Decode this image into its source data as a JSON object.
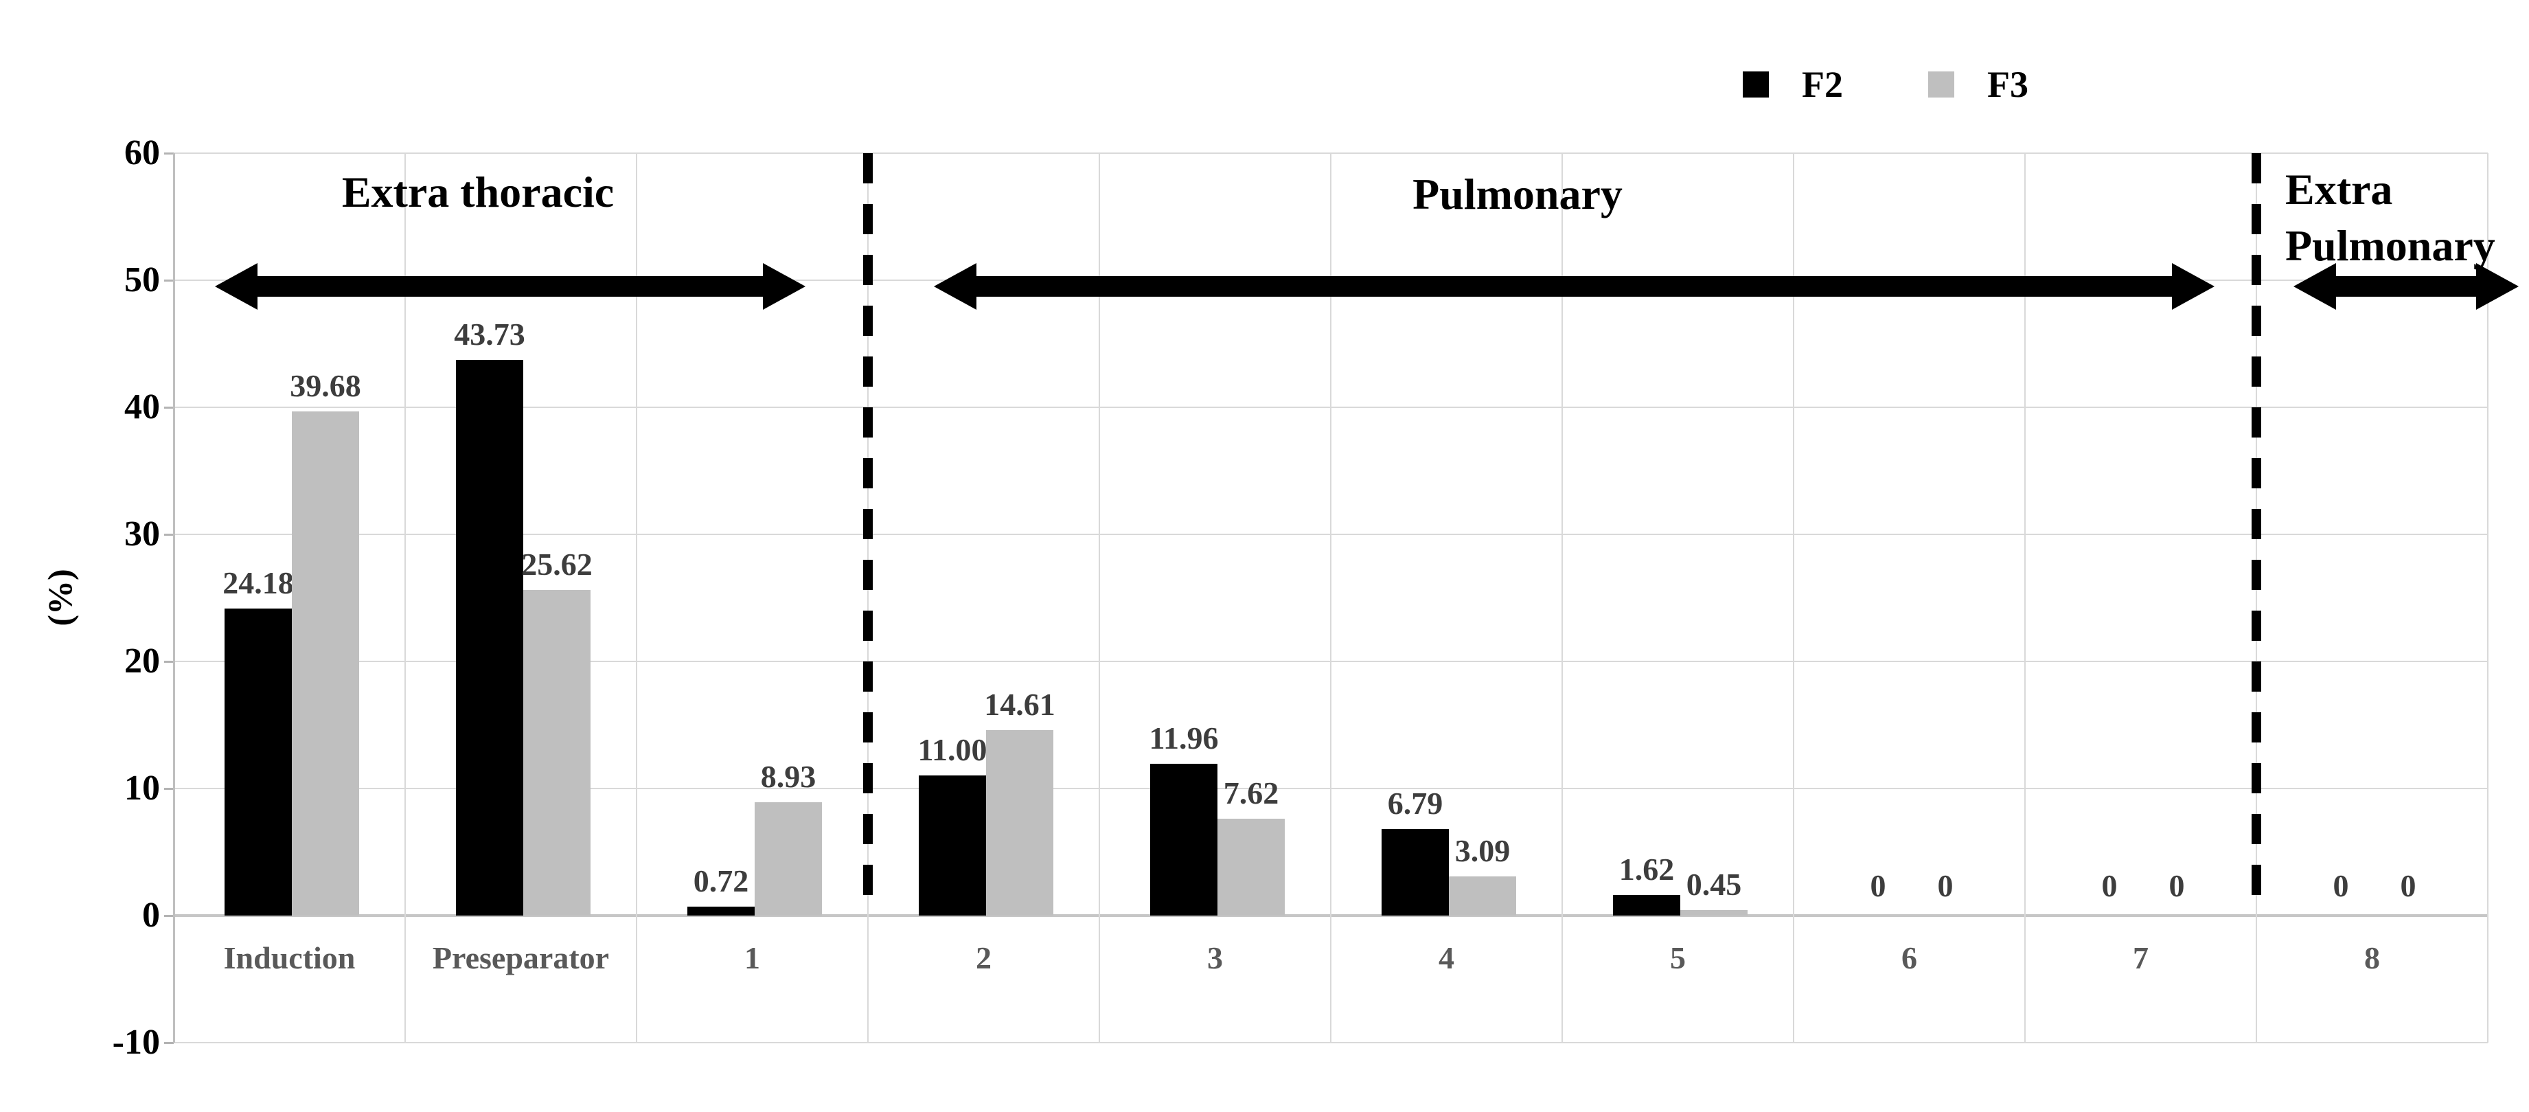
{
  "legend": {
    "items": [
      {
        "label": "F2",
        "color": "#000000"
      },
      {
        "label": "F3",
        "color": "#bfbfbf"
      }
    ]
  },
  "chart_data": {
    "type": "bar",
    "title": "",
    "xlabel": "",
    "ylabel": "(%)",
    "ylim": [
      -10,
      60
    ],
    "ytick_values": [
      60,
      50,
      40,
      30,
      20,
      10,
      0,
      -10
    ],
    "ytick_labels": [
      "60",
      "50",
      "40",
      "30",
      "20",
      "10",
      "0",
      "-10"
    ],
    "grid": true,
    "legend_position": "top-right",
    "categories": [
      "Induction",
      "Preseparator",
      "1",
      "2",
      "3",
      "4",
      "5",
      "6",
      "7",
      "8"
    ],
    "series": [
      {
        "name": "F2",
        "color": "#000000",
        "values": [
          24.18,
          43.73,
          0.72,
          11.0,
          11.96,
          6.79,
          1.62,
          0,
          0,
          0
        ],
        "labels": [
          "24.18",
          "43.73",
          "0.72",
          "11.00",
          "11.96",
          "6.79",
          "1.62",
          "0",
          "0",
          "0"
        ]
      },
      {
        "name": "F3",
        "color": "#bfbfbf",
        "values": [
          39.68,
          25.62,
          8.93,
          14.61,
          7.62,
          3.09,
          0.45,
          0,
          0,
          0
        ],
        "labels": [
          "39.68",
          "25.62",
          "8.93",
          "14.61",
          "7.62",
          "3.09",
          "0.45",
          "0",
          "0",
          "0"
        ]
      }
    ],
    "dashed_separators_at_boundary": [
      3,
      9
    ],
    "region_annotations": [
      {
        "label_lines": [
          "Extra thoracic"
        ],
        "arrow_x1": 313,
        "arrow_x2": 1173,
        "label_cx": 696,
        "label_cy": 280
      },
      {
        "label_lines": [
          "Pulmonary"
        ],
        "arrow_x1": 1360,
        "arrow_x2": 3225,
        "label_cx": 2210,
        "label_cy": 283
      },
      {
        "label_lines": [
          "Extra",
          "Pulmonary"
        ],
        "arrow_x1": 3340,
        "arrow_x2": 3668,
        "label_cx": 3328,
        "label_cy": 276
      }
    ]
  },
  "colors": {
    "grid": "#d9d9d9",
    "axis": "#bfbfbf",
    "zero_line": "#c6c6c6",
    "value_label": "#3d3d3d",
    "category_label": "#595959",
    "annotation": "#000000",
    "background": "#ffffff"
  }
}
